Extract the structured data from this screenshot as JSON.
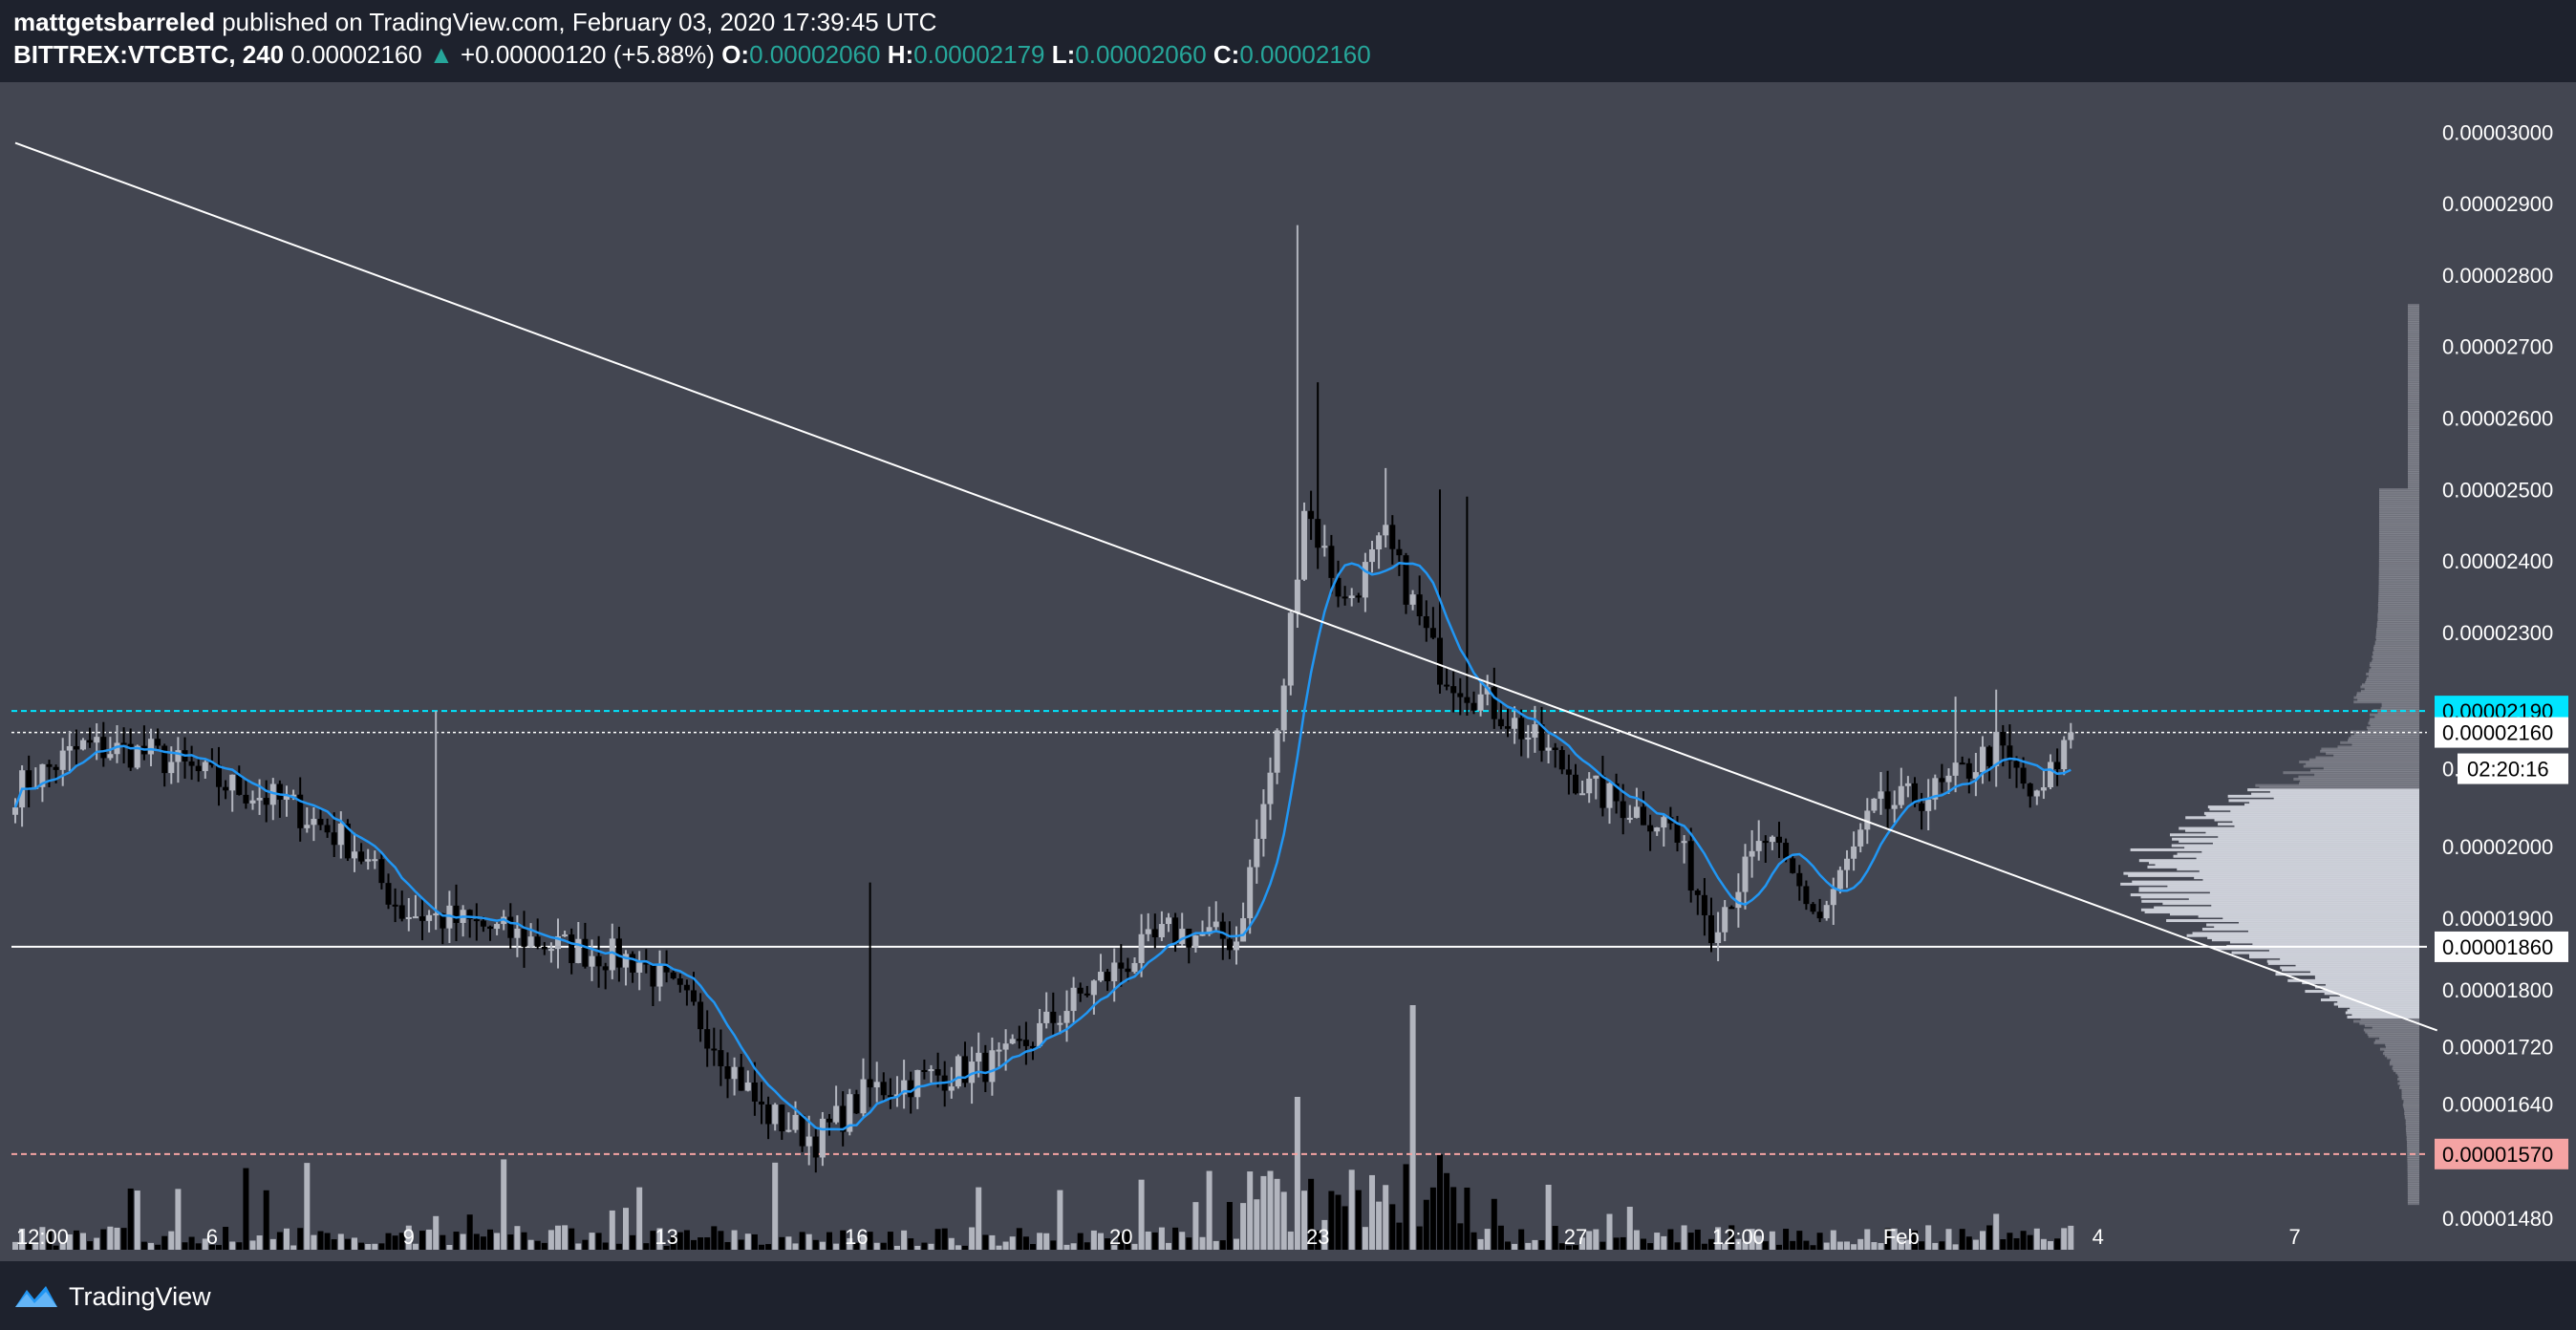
{
  "header": {
    "author": "mattgetsbarreled",
    "published": "published on TradingView.com, February 03, 2020 17:39:45 UTC",
    "symbol": "BITTREX:VTCBTC, 240",
    "last": "0.00002160",
    "change": "+0.00000120 (+5.88%)",
    "o_label": "O:",
    "o": "0.00002060",
    "h_label": "H:",
    "h": "0.00002179",
    "l_label": "L:",
    "l": "0.00002060",
    "c_label": "C:",
    "c": "0.00002160"
  },
  "footer": {
    "brand": "TradingView",
    "logo_icon": "tradingview-logo-icon"
  },
  "colors": {
    "background": "#434651",
    "up_candle": "#b2b5be",
    "down_candle": "#000000",
    "ma_line": "#2196f3",
    "teal_line": "#00e5ff",
    "pink_line": "#f4a3a3"
  },
  "chart_data": {
    "type": "candlestick",
    "ylim": [
      1.42e-05,
      3.07e-05
    ],
    "y_ticks": [
      "0.00003000",
      "0.00002900",
      "0.00002800",
      "0.00002700",
      "0.00002600",
      "0.00002500",
      "0.00002400",
      "0.00002300",
      "0.00002000",
      "0.00001900",
      "0.00001800",
      "0.00001720",
      "0.00001640",
      "0.00001480"
    ],
    "y_tick_values": [
      3e-05,
      2.9e-05,
      2.8e-05,
      2.7e-05,
      2.6e-05,
      2.5e-05,
      2.4e-05,
      2.3e-05,
      2e-05,
      1.9e-05,
      1.8e-05,
      1.72e-05,
      1.64e-05,
      1.48e-05
    ],
    "x_ticks": [
      {
        "label": "12:00",
        "t": 4
      },
      {
        "label": "6",
        "t": 29
      },
      {
        "label": "9",
        "t": 58
      },
      {
        "label": "13",
        "t": 96
      },
      {
        "label": "16",
        "t": 124
      },
      {
        "label": "20",
        "t": 163
      },
      {
        "label": "23",
        "t": 192
      },
      {
        "label": "27",
        "t": 230
      },
      {
        "label": "12:00",
        "t": 254
      },
      {
        "label": "Feb",
        "t": 278
      },
      {
        "label": "4",
        "t": 307
      },
      {
        "label": "7",
        "t": 336
      }
    ],
    "price_labels": [
      {
        "value": 2.19e-05,
        "text": "0.00002190",
        "style": "teal"
      },
      {
        "value": 2.16e-05,
        "text": "0.00002160",
        "style": "white"
      },
      {
        "value": 1.86e-05,
        "text": "0.00001860",
        "style": "white"
      },
      {
        "value": 1.57e-05,
        "text": "0.00001570",
        "style": "pink"
      }
    ],
    "countdown": "02:20:16",
    "countdown_prefix": "0.",
    "horizontal_lines": [
      {
        "value": 2.19e-05,
        "style": "teal-dashed"
      },
      {
        "value": 2.16e-05,
        "style": "white-dotted"
      },
      {
        "value": 1.86e-05,
        "style": "white-solid"
      },
      {
        "value": 1.57e-05,
        "style": "pink-dashed"
      }
    ],
    "trendlines": [
      {
        "from": {
          "t": 0,
          "price": 2.985e-05
        },
        "to": {
          "t": 357,
          "price": 1.743e-05
        }
      }
    ],
    "candle_count": 304,
    "key_prices": [
      {
        "t": 0,
        "price": 2.08e-05
      },
      {
        "t": 10,
        "price": 2.14e-05
      },
      {
        "t": 20,
        "price": 2.13e-05
      },
      {
        "t": 30,
        "price": 2.09e-05
      },
      {
        "t": 40,
        "price": 2.06e-05
      },
      {
        "t": 50,
        "price": 2e-05
      },
      {
        "t": 57,
        "price": 1.91e-05
      },
      {
        "t": 68,
        "price": 1.89e-05
      },
      {
        "t": 80,
        "price": 1.86e-05
      },
      {
        "t": 92,
        "price": 1.84e-05
      },
      {
        "t": 100,
        "price": 1.77e-05
      },
      {
        "t": 110,
        "price": 1.63e-05
      },
      {
        "t": 118,
        "price": 1.59e-05
      },
      {
        "t": 126,
        "price": 1.66e-05
      },
      {
        "t": 136,
        "price": 1.68e-05
      },
      {
        "t": 146,
        "price": 1.7e-05
      },
      {
        "t": 158,
        "price": 1.8e-05
      },
      {
        "t": 170,
        "price": 1.88e-05
      },
      {
        "t": 180,
        "price": 1.87e-05
      },
      {
        "t": 186,
        "price": 2.15e-05
      },
      {
        "t": 190,
        "price": 2.48e-05
      },
      {
        "t": 196,
        "price": 2.34e-05
      },
      {
        "t": 202,
        "price": 2.43e-05
      },
      {
        "t": 210,
        "price": 2.25e-05
      },
      {
        "t": 220,
        "price": 2.18e-05
      },
      {
        "t": 232,
        "price": 2.08e-05
      },
      {
        "t": 244,
        "price": 2.03e-05
      },
      {
        "t": 250,
        "price": 1.89e-05
      },
      {
        "t": 258,
        "price": 2.01e-05
      },
      {
        "t": 266,
        "price": 1.9e-05
      },
      {
        "t": 274,
        "price": 2.05e-05
      },
      {
        "t": 284,
        "price": 2.08e-05
      },
      {
        "t": 292,
        "price": 2.14e-05
      },
      {
        "t": 298,
        "price": 2.06e-05
      },
      {
        "t": 303,
        "price": 2.16e-05
      }
    ],
    "big_wicks": [
      {
        "t": 62,
        "high": 2.19e-05
      },
      {
        "t": 189,
        "high": 2.87e-05
      },
      {
        "t": 192,
        "high": 2.65e-05
      },
      {
        "t": 202,
        "high": 2.53e-05
      },
      {
        "t": 210,
        "high": 2.5e-05
      },
      {
        "t": 214,
        "high": 2.49e-05
      },
      {
        "t": 126,
        "high": 1.95e-05
      },
      {
        "t": 286,
        "high": 2.21e-05
      },
      {
        "t": 292,
        "high": 2.22e-05
      }
    ]
  }
}
